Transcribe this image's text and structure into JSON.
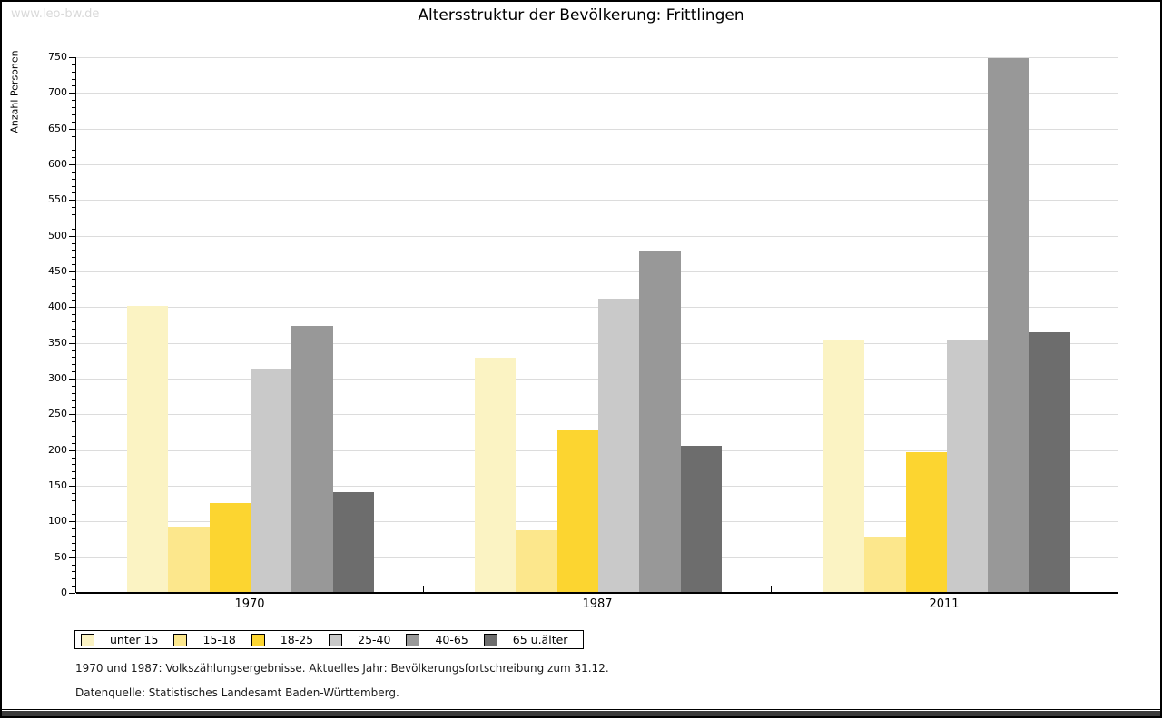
{
  "watermark": "www.leo-bw.de",
  "chart_data": {
    "type": "bar",
    "title": "Altersstruktur der Bevölkerung: Frittlingen",
    "ylabel": "Anzahl Personen",
    "xlabel": "",
    "ylim": [
      0,
      750
    ],
    "ytick_step": 50,
    "minor_tick_step": 10,
    "grid": true,
    "legend_position": "bottom",
    "categories": [
      "1970",
      "1987",
      "2011"
    ],
    "series": [
      {
        "name": "unter 15",
        "color": "#FBF3C3",
        "values": [
          400,
          328,
          352
        ]
      },
      {
        "name": "15-18",
        "color": "#FCE78C",
        "values": [
          92,
          87,
          78
        ]
      },
      {
        "name": "18-25",
        "color": "#FCD530",
        "values": [
          124,
          226,
          196
        ]
      },
      {
        "name": "25-40",
        "color": "#C9C9C9",
        "values": [
          313,
          410,
          352
        ]
      },
      {
        "name": "40-65",
        "color": "#989898",
        "values": [
          373,
          478,
          747
        ]
      },
      {
        "name": "65 u.älter",
        "color": "#6D6D6D",
        "values": [
          140,
          205,
          364
        ]
      }
    ]
  },
  "footnotes": [
    "1970 und 1987: Volkszählungsergebnisse. Aktuelles Jahr: Bevölkerungsfortschreibung zum 31.12.",
    "Datenquelle: Statistisches Landesamt Baden-Württemberg."
  ]
}
